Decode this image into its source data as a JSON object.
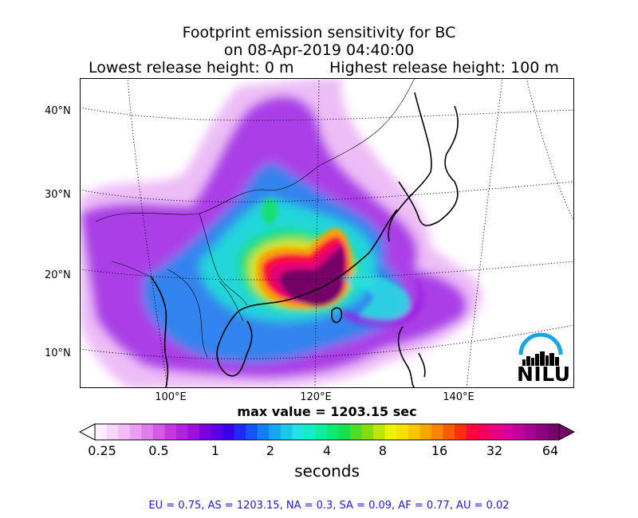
{
  "title": {
    "line1": "Footprint emission sensitivity for BC",
    "line2": "on 08-Apr-2019 04:40:00",
    "release_low": "Lowest release height: 0 m",
    "release_high": "Highest release height: 100 m"
  },
  "map": {
    "lat_labels": [
      "40°N",
      "30°N",
      "20°N",
      "10°N"
    ],
    "lon_labels": [
      "100°E",
      "120°E",
      "140°E"
    ],
    "logo": "NILU"
  },
  "max_value": "max value = 1203.15 sec",
  "colorbar": {
    "ticks": [
      "0.25",
      "0.5",
      "1",
      "2",
      "4",
      "8",
      "16",
      "32",
      "64"
    ],
    "unit": "seconds",
    "colors": [
      "#fdeefe",
      "#f8d6fb",
      "#f2bcf7",
      "#ea9df3",
      "#e07ded",
      "#d45be6",
      "#c53ae0",
      "#b520de",
      "#9e10dc",
      "#8000dc",
      "#5b00e2",
      "#3a00e8",
      "#1f2cf3",
      "#1555f7",
      "#0f80f5",
      "#14a6f0",
      "#1fc6ec",
      "#22e2e6",
      "#16ecc8",
      "#10eca0",
      "#10e876",
      "#16e04e",
      "#52dc24",
      "#88dc0e",
      "#bce60a",
      "#eef00a",
      "#f6e000",
      "#f8c600",
      "#fba600",
      "#fb8400",
      "#f85c00",
      "#f8300c",
      "#fa0a3a",
      "#f2005e",
      "#e60080",
      "#d8009c",
      "#c2009c",
      "#a80092",
      "#8e007e",
      "#760068"
    ]
  },
  "footer": "EU = 0.75,  AS = 1203.15,  NA = 0.3,  SA = 0.09,  AF = 0.77,  AU = 0.02"
}
